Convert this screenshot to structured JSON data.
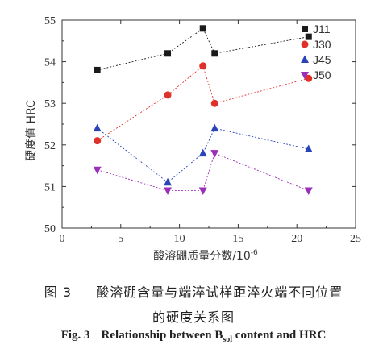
{
  "chart_data": {
    "type": "scatter",
    "xlabel_main": "酸溶硼质量分数",
    "xlabel_unit": "/10",
    "xlabel_exp": "-6",
    "ylabel": "硬度值 HRC",
    "xlim": [
      0,
      25
    ],
    "ylim": [
      50,
      55
    ],
    "xticks": [
      "0",
      "5",
      "10",
      "15",
      "20",
      "25"
    ],
    "yticks": [
      "50",
      "51",
      "52",
      "53",
      "54",
      "55"
    ],
    "legend_position": "top-right",
    "grid": false,
    "series": [
      {
        "name": "J11",
        "color": "#1a1a1a",
        "marker": "square",
        "x": [
          3,
          9,
          12,
          13,
          21
        ],
        "y": [
          53.8,
          54.2,
          54.8,
          54.2,
          54.6
        ]
      },
      {
        "name": "J30",
        "color": "#e0302a",
        "marker": "circle",
        "x": [
          3,
          9,
          12,
          13,
          21
        ],
        "y": [
          52.1,
          53.2,
          53.9,
          53.0,
          53.6
        ]
      },
      {
        "name": "J45",
        "color": "#2a44b8",
        "marker": "triangle-up",
        "x": [
          3,
          9,
          12,
          13,
          21
        ],
        "y": [
          52.4,
          51.1,
          51.8,
          52.4,
          51.9
        ]
      },
      {
        "name": "J50",
        "color": "#9a2fb8",
        "marker": "triangle-down",
        "x": [
          3,
          9,
          12,
          13,
          21
        ],
        "y": [
          51.4,
          50.9,
          50.9,
          51.8,
          50.9
        ]
      }
    ]
  },
  "caption": {
    "line1_label": "图 3",
    "line1_text": "酸溶硼含量与端淬试样距淬火端不同位置",
    "line2_text": "的硬度关系图",
    "line3_label": "Fig. 3",
    "line3_text_a": "Relationship between B",
    "line3_sub": "sol",
    "line3_text_b": " content and HRC"
  }
}
